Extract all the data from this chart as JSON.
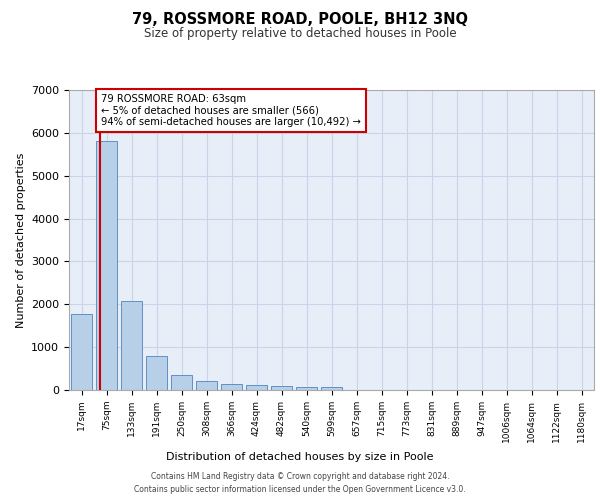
{
  "title": "79, ROSSMORE ROAD, POOLE, BH12 3NQ",
  "subtitle": "Size of property relative to detached houses in Poole",
  "xlabel": "Distribution of detached houses by size in Poole",
  "ylabel": "Number of detached properties",
  "bar_labels": [
    "17sqm",
    "75sqm",
    "133sqm",
    "191sqm",
    "250sqm",
    "308sqm",
    "366sqm",
    "424sqm",
    "482sqm",
    "540sqm",
    "599sqm",
    "657sqm",
    "715sqm",
    "773sqm",
    "831sqm",
    "889sqm",
    "947sqm",
    "1006sqm",
    "1064sqm",
    "1122sqm",
    "1180sqm"
  ],
  "bar_values": [
    1780,
    5800,
    2080,
    800,
    340,
    200,
    130,
    120,
    100,
    80,
    80,
    0,
    0,
    0,
    0,
    0,
    0,
    0,
    0,
    0,
    0
  ],
  "bar_color": "#b8cfe8",
  "bar_edge_color": "#6090c8",
  "annotation_text_line1": "79 ROSSMORE ROAD: 63sqm",
  "annotation_text_line2": "← 5% of detached houses are smaller (566)",
  "annotation_text_line3": "94% of semi-detached houses are larger (10,492) →",
  "annotation_box_facecolor": "#ffffff",
  "annotation_box_edgecolor": "#cc0000",
  "vline_color": "#cc0000",
  "grid_color": "#c8d4e8",
  "background_color": "#e8eef8",
  "footer_line1": "Contains HM Land Registry data © Crown copyright and database right 2024.",
  "footer_line2": "Contains public sector information licensed under the Open Government Licence v3.0.",
  "ylim": [
    0,
    7000
  ],
  "yticks": [
    0,
    1000,
    2000,
    3000,
    4000,
    5000,
    6000,
    7000
  ],
  "vline_x": 0.72
}
